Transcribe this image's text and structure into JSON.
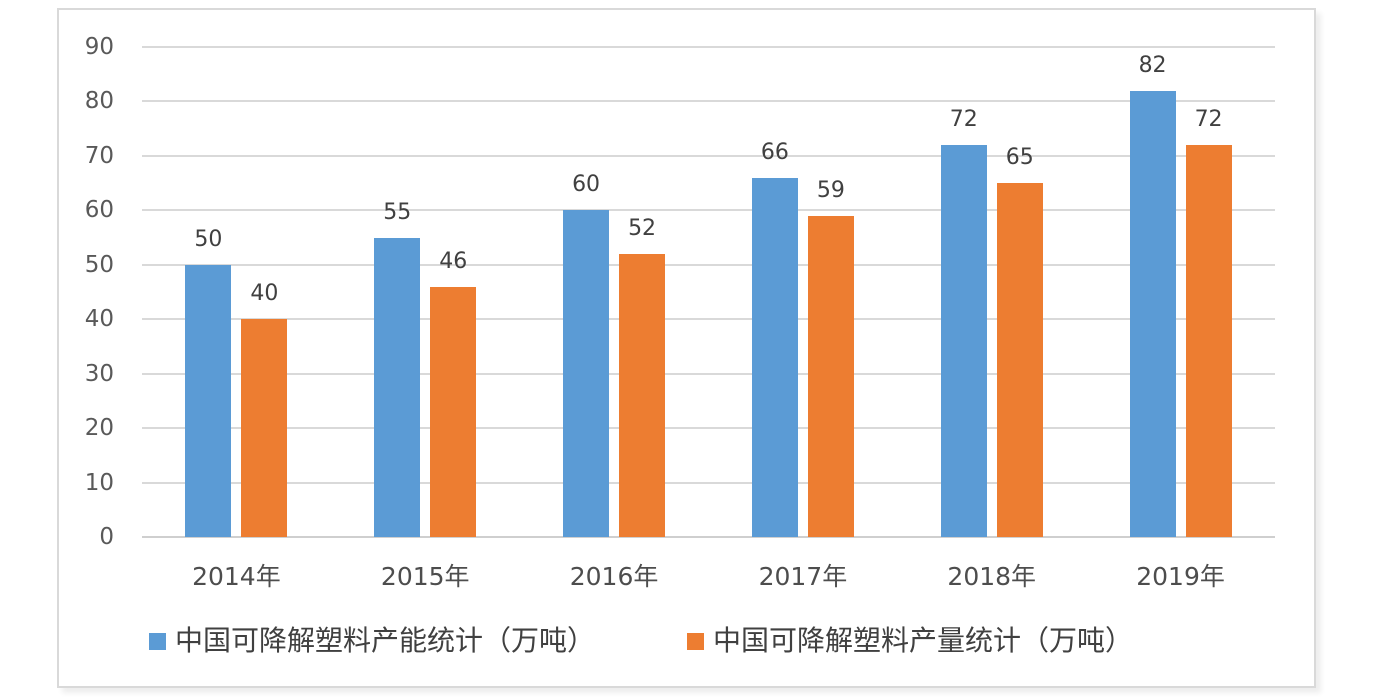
{
  "chart_data": {
    "type": "bar",
    "title": "",
    "xlabel": "",
    "ylabel": "",
    "categories": [
      "2014年",
      "2015年",
      "2016年",
      "2017年",
      "2018年",
      "2019年"
    ],
    "series": [
      {
        "name": "中国可降解塑料产能统计（万吨）",
        "key": "capacity",
        "color": "#5B9BD5",
        "values": [
          50,
          55,
          60,
          66,
          72,
          82
        ]
      },
      {
        "name": "中国可降解塑料产量统计（万吨）",
        "key": "output",
        "color": "#ED7D31",
        "values": [
          40,
          46,
          52,
          59,
          65,
          72
        ]
      }
    ],
    "ylim": [
      0,
      90
    ],
    "yticks": [
      0,
      10,
      20,
      30,
      40,
      50,
      60,
      70,
      80,
      90
    ],
    "grid": "horizontal",
    "data_labels": true,
    "legend_position": "bottom"
  },
  "style": {
    "gridline_color": "#D9D9D9",
    "baseline_color": "#CFCFCF",
    "axis_text_color": "#595959",
    "category_text_color": "#4D4D4D",
    "data_label_color": "#404040",
    "frame_border_color": "#D9D9D9",
    "background_color": "#FFFFFF",
    "series_blue": "#5B9BD5",
    "series_orange": "#ED7D31"
  }
}
